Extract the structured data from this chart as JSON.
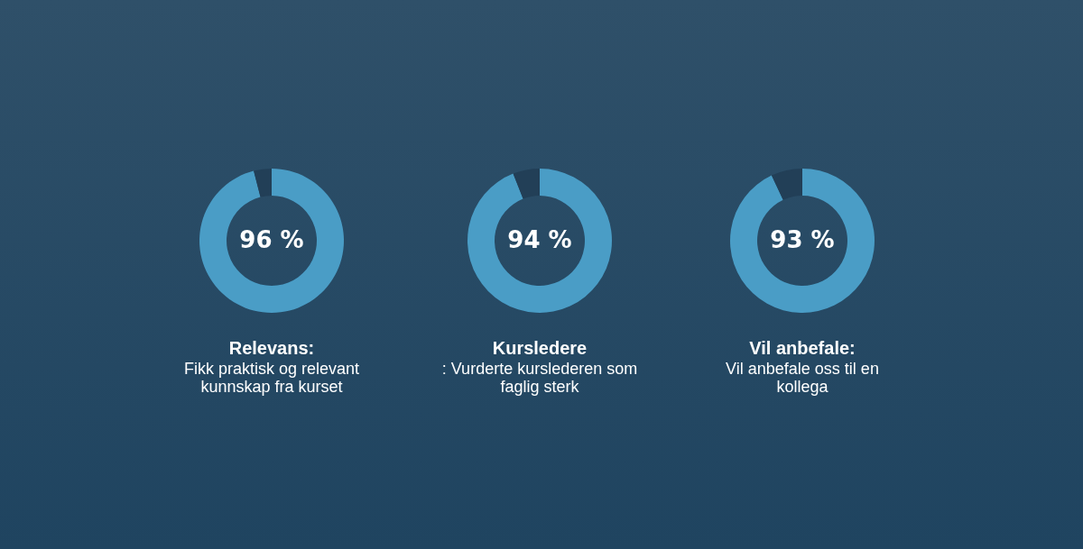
{
  "chart_data": [
    {
      "type": "donut",
      "title": "Relevans:",
      "subtitle": "Fikk praktisk og relevant kunnskap fra kurset",
      "categories": [
        null,
        null
      ],
      "values": [
        96,
        4
      ],
      "colors": [
        "#4a9dc6",
        "#223f57"
      ],
      "value_labels": [
        "96 %",
        null
      ]
    },
    {
      "type": "donut",
      "title": "Kursledere",
      "subtitle": ": Vurderte kurslederen som faglig sterk",
      "categories": [
        null,
        null
      ],
      "values": [
        94,
        6
      ],
      "colors": [
        "#4a9dc6",
        "#223f57"
      ],
      "value_labels": [
        "94 %",
        null
      ]
    },
    {
      "type": "donut",
      "title": "Vil anbefale:",
      "subtitle": "Vil anbefale oss til en kollega",
      "categories": [
        null,
        null
      ],
      "values": [
        93,
        7
      ],
      "colors": [
        "#4a9dc6",
        "#223f57"
      ],
      "value_labels": [
        "93 %",
        null
      ]
    }
  ]
}
